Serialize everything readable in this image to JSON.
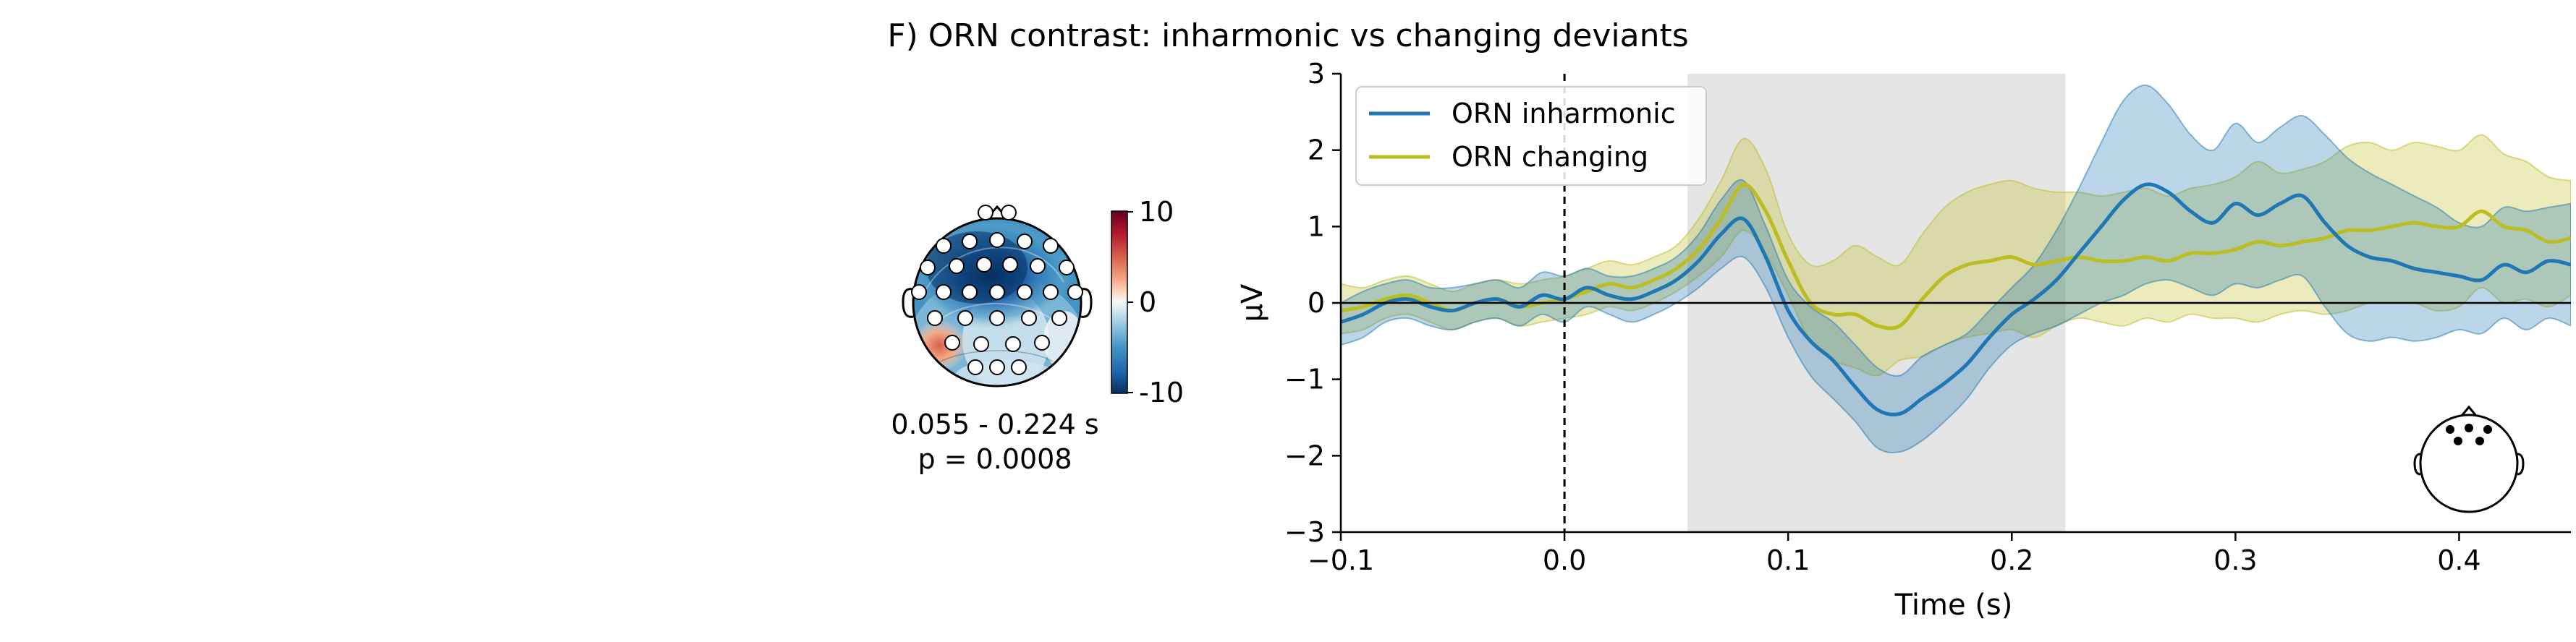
{
  "figure": {
    "title": "F) ORN contrast: inharmonic vs changing deviants"
  },
  "topomap": {
    "colorbar_ticks": [
      "10",
      "0",
      "-10"
    ],
    "colorbar_range": [
      -10,
      10
    ],
    "colormap": [
      "#053061",
      "#2166ac",
      "#4393c3",
      "#92c5de",
      "#d1e5f0",
      "#f7f7f7",
      "#fddbc7",
      "#f4a582",
      "#d6604d",
      "#b2182b",
      "#67001f"
    ],
    "time_label": "0.055 - 0.224 s",
    "p_label": "p = 0.0008"
  },
  "chart_data": {
    "type": "line",
    "xlabel": "Time (s)",
    "ylabel": "µV",
    "xlim": [
      -0.1,
      0.45
    ],
    "ylim": [
      -3,
      3
    ],
    "xticks": [
      -0.1,
      0.0,
      0.1,
      0.2,
      0.3,
      0.4
    ],
    "xtick_labels": [
      "−0.1",
      "0.0",
      "0.1",
      "0.2",
      "0.3",
      "0.4"
    ],
    "yticks": [
      -3,
      -2,
      -1,
      0,
      1,
      2,
      3
    ],
    "ytick_labels": [
      "−3",
      "−2",
      "−1",
      "0",
      "1",
      "2",
      "3"
    ],
    "significant_window": [
      0.055,
      0.224
    ],
    "stimulus_onset": 0.0,
    "legend_position": "top-left",
    "grid": false,
    "series": [
      {
        "name": "ORN inharmonic",
        "color": "#1f77b4",
        "x": [
          -0.1,
          -0.09,
          -0.08,
          -0.07,
          -0.06,
          -0.05,
          -0.04,
          -0.03,
          -0.02,
          -0.01,
          0.0,
          0.01,
          0.02,
          0.03,
          0.04,
          0.05,
          0.06,
          0.07,
          0.08,
          0.09,
          0.1,
          0.11,
          0.12,
          0.13,
          0.14,
          0.15,
          0.16,
          0.17,
          0.18,
          0.19,
          0.2,
          0.21,
          0.22,
          0.23,
          0.24,
          0.25,
          0.26,
          0.27,
          0.28,
          0.29,
          0.3,
          0.31,
          0.32,
          0.33,
          0.34,
          0.35,
          0.36,
          0.37,
          0.38,
          0.39,
          0.4,
          0.41,
          0.42,
          0.43,
          0.44,
          0.45
        ],
        "y": [
          -0.25,
          -0.15,
          0.0,
          0.05,
          -0.05,
          -0.1,
          0.0,
          0.05,
          -0.05,
          0.1,
          0.05,
          0.2,
          0.1,
          0.05,
          0.15,
          0.3,
          0.55,
          0.9,
          1.1,
          0.6,
          -0.1,
          -0.5,
          -0.75,
          -1.1,
          -1.4,
          -1.45,
          -1.25,
          -1.05,
          -0.8,
          -0.45,
          -0.15,
          0.05,
          0.3,
          0.65,
          1.0,
          1.35,
          1.55,
          1.45,
          1.2,
          1.05,
          1.3,
          1.15,
          1.3,
          1.4,
          1.05,
          0.75,
          0.6,
          0.55,
          0.45,
          0.4,
          0.35,
          0.3,
          0.5,
          0.4,
          0.55,
          0.5
        ],
        "ci_upper": [
          0.0,
          0.15,
          0.25,
          0.3,
          0.2,
          0.2,
          0.25,
          0.3,
          0.2,
          0.4,
          0.35,
          0.45,
          0.35,
          0.35,
          0.45,
          0.6,
          0.9,
          1.35,
          1.6,
          1.0,
          0.3,
          -0.05,
          -0.25,
          -0.55,
          -0.85,
          -0.95,
          -0.7,
          -0.55,
          -0.4,
          -0.1,
          0.2,
          0.5,
          0.95,
          1.5,
          2.1,
          2.65,
          2.85,
          2.6,
          2.2,
          2.0,
          2.35,
          2.1,
          2.3,
          2.45,
          2.2,
          1.9,
          1.7,
          1.55,
          1.4,
          1.25,
          1.05,
          1.0,
          1.25,
          1.2,
          1.25,
          1.3
        ],
        "ci_lower": [
          -0.55,
          -0.45,
          -0.25,
          -0.2,
          -0.3,
          -0.35,
          -0.25,
          -0.2,
          -0.3,
          -0.15,
          -0.25,
          -0.05,
          -0.15,
          -0.25,
          -0.15,
          0.0,
          0.2,
          0.45,
          0.6,
          0.2,
          -0.45,
          -0.95,
          -1.25,
          -1.55,
          -1.9,
          -1.95,
          -1.8,
          -1.55,
          -1.25,
          -0.85,
          -0.55,
          -0.4,
          -0.3,
          -0.15,
          0.0,
          0.1,
          0.25,
          0.3,
          0.2,
          0.1,
          0.25,
          0.2,
          0.3,
          0.35,
          -0.05,
          -0.4,
          -0.5,
          -0.45,
          -0.5,
          -0.45,
          -0.35,
          -0.4,
          -0.2,
          -0.35,
          -0.2,
          -0.3
        ]
      },
      {
        "name": "ORN changing",
        "color": "#bcbd22",
        "x": [
          -0.1,
          -0.09,
          -0.08,
          -0.07,
          -0.06,
          -0.05,
          -0.04,
          -0.03,
          -0.02,
          -0.01,
          0.0,
          0.01,
          0.02,
          0.03,
          0.04,
          0.05,
          0.06,
          0.07,
          0.08,
          0.09,
          0.1,
          0.11,
          0.12,
          0.13,
          0.14,
          0.15,
          0.16,
          0.17,
          0.18,
          0.19,
          0.2,
          0.21,
          0.22,
          0.23,
          0.24,
          0.25,
          0.26,
          0.27,
          0.28,
          0.29,
          0.3,
          0.31,
          0.32,
          0.33,
          0.34,
          0.35,
          0.36,
          0.37,
          0.38,
          0.39,
          0.4,
          0.41,
          0.42,
          0.43,
          0.44,
          0.45
        ],
        "y": [
          -0.1,
          -0.05,
          0.05,
          0.1,
          0.0,
          -0.1,
          0.0,
          0.05,
          -0.05,
          0.0,
          0.05,
          0.15,
          0.25,
          0.2,
          0.3,
          0.45,
          0.7,
          1.1,
          1.55,
          1.2,
          0.55,
          0.0,
          -0.15,
          -0.15,
          -0.3,
          -0.3,
          0.05,
          0.35,
          0.5,
          0.55,
          0.6,
          0.5,
          0.55,
          0.6,
          0.55,
          0.55,
          0.6,
          0.55,
          0.65,
          0.65,
          0.7,
          0.8,
          0.75,
          0.8,
          0.85,
          0.95,
          0.95,
          1.0,
          1.05,
          1.0,
          1.0,
          1.2,
          1.0,
          0.95,
          0.8,
          0.85
        ],
        "ci_upper": [
          0.25,
          0.2,
          0.3,
          0.35,
          0.25,
          0.15,
          0.25,
          0.3,
          0.25,
          0.3,
          0.35,
          0.45,
          0.55,
          0.5,
          0.6,
          0.75,
          1.1,
          1.6,
          2.15,
          1.75,
          0.9,
          0.5,
          0.55,
          0.75,
          0.6,
          0.5,
          0.9,
          1.25,
          1.45,
          1.55,
          1.6,
          1.5,
          1.45,
          1.45,
          1.4,
          1.45,
          1.5,
          1.4,
          1.5,
          1.55,
          1.65,
          1.85,
          1.7,
          1.75,
          1.85,
          2.05,
          2.1,
          2.0,
          2.1,
          2.05,
          2.0,
          2.2,
          1.95,
          1.85,
          1.65,
          1.6
        ],
        "ci_lower": [
          -0.4,
          -0.35,
          -0.2,
          -0.15,
          -0.25,
          -0.35,
          -0.25,
          -0.2,
          -0.3,
          -0.25,
          -0.2,
          -0.15,
          -0.05,
          -0.1,
          0.0,
          0.15,
          0.35,
          0.6,
          0.95,
          0.65,
          0.1,
          -0.5,
          -0.75,
          -0.85,
          -0.95,
          -0.75,
          -0.7,
          -0.55,
          -0.45,
          -0.4,
          -0.35,
          -0.45,
          -0.3,
          -0.2,
          -0.25,
          -0.3,
          -0.2,
          -0.25,
          -0.15,
          -0.2,
          -0.2,
          -0.25,
          -0.15,
          -0.1,
          -0.15,
          -0.1,
          0.0,
          0.0,
          0.0,
          -0.1,
          -0.05,
          0.2,
          0.0,
          0.05,
          -0.05,
          0.1
        ]
      }
    ]
  }
}
